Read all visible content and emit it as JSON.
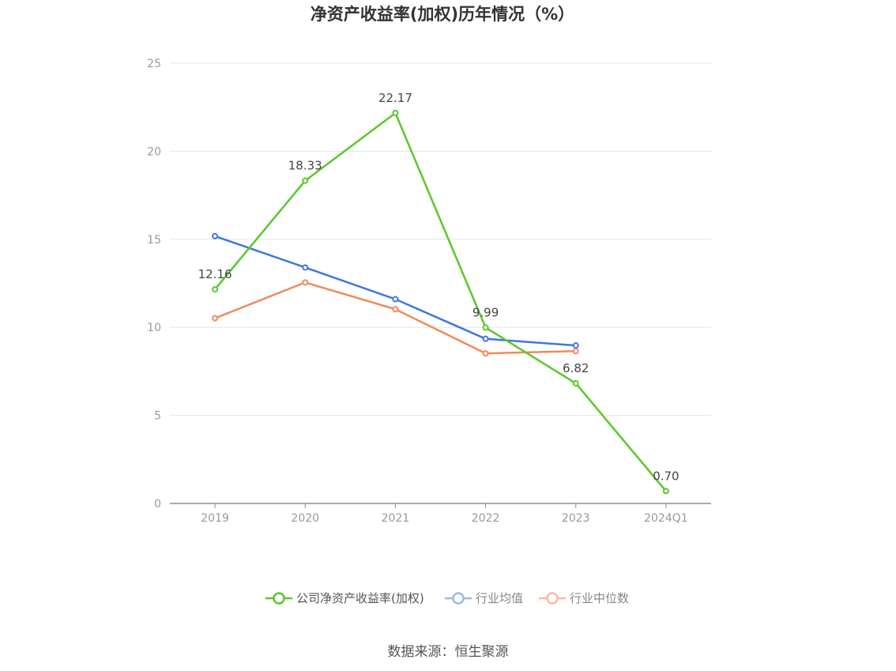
{
  "chart_data": {
    "type": "line",
    "title": "净资产收益率(加权)历年情况（%）",
    "categories": [
      "2019",
      "2020",
      "2021",
      "2022",
      "2023",
      "2024Q1"
    ],
    "ylim": [
      0,
      25
    ],
    "yticks": [
      0,
      5,
      10,
      15,
      20,
      25
    ],
    "grid": true,
    "legend_position": "bottom",
    "series": [
      {
        "name": "公司净资产收益率(加权)",
        "color": "#5ac82a",
        "values": [
          12.16,
          18.33,
          22.17,
          9.99,
          6.82,
          0.7
        ],
        "labels": [
          "12.16",
          "18.33",
          "22.17",
          "9.99",
          "6.82",
          "0.70"
        ]
      },
      {
        "name": "行业均值",
        "color": "#3d78de",
        "values": [
          15.18,
          13.4,
          11.6,
          9.35,
          8.97,
          null
        ]
      },
      {
        "name": "行业中位数",
        "color": "#f08b5a",
        "values": [
          10.52,
          12.55,
          11.03,
          8.52,
          8.65,
          null
        ]
      }
    ],
    "source": "数据来源：恒生聚源"
  }
}
